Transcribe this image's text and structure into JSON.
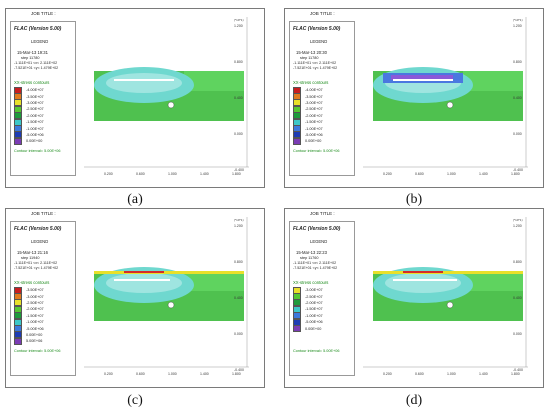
{
  "captions": {
    "a": "(a)",
    "b": "(b)",
    "c": "(c)",
    "d": "(d)"
  },
  "shared": {
    "job_title": "JOB TITLE :",
    "flac_version": "FLAC (Version 5.00)",
    "legend": "LEGEND",
    "contour_title": "XX-stress contours",
    "contour_interval": "Contour interval= 5.00E+06",
    "x_ticks": [
      "0.200",
      "0.600",
      "1.000",
      "1.400",
      "1.800"
    ],
    "y_ticks": [
      "1.200",
      "0.800",
      "0.400",
      "0.000",
      "-0.400"
    ],
    "axis_unit": "(*10^1)"
  },
  "panels": {
    "a": {
      "datetime": "15-Mar-13 19:31",
      "step": "step 11780",
      "range1": "-1.111E+01 <x< 2.111E+02",
      "range2": "-7.521E+01 <y< 1.479E+02",
      "contours": [
        "-4.00E+07",
        "-3.50E+07",
        "-3.00E+07",
        "-2.50E+07",
        "-2.00E+07",
        "-1.50E+07",
        "-1.00E+07",
        "-5.00E+06",
        "0.00E+00"
      ]
    },
    "b": {
      "datetime": "15-Mar-13 20:30",
      "step": "step 11780",
      "range1": "-1.111E+01 <x< 2.111E+02",
      "range2": "-7.521E+01 <y< 1.479E+02",
      "contours": [
        "-4.00E+07",
        "-3.50E+07",
        "-3.00E+07",
        "-2.50E+07",
        "-2.00E+07",
        "-1.50E+07",
        "-1.00E+07",
        "-5.00E+06",
        "0.00E+00"
      ]
    },
    "c": {
      "datetime": "15-Mar-13 21:16",
      "step": "step 11940",
      "range1": "-1.111E+01 <x< 2.111E+02",
      "range2": "-7.521E+01 <y< 1.479E+02",
      "contours": [
        "-3.50E+07",
        "-3.00E+07",
        "-2.50E+07",
        "-2.00E+07",
        "-1.50E+07",
        "-1.00E+07",
        "-5.00E+06",
        "0.00E+00",
        "5.00E+06"
      ]
    },
    "d": {
      "datetime": "15-Mar-13 22:23",
      "step": "step 11760",
      "range1": "-1.111E+01 <x< 2.111E+02",
      "range2": "-7.521E+01 <y< 1.479E+02",
      "contours": [
        "-3.00E+07",
        "-2.50E+07",
        "-2.00E+07",
        "-1.50E+07",
        "-1.00E+07",
        "-5.00E+06",
        "0.00E+00"
      ]
    }
  },
  "colors": {
    "contour_swatches": [
      "#c81e1e",
      "#e07a1e",
      "#e8e02a",
      "#55c832",
      "#1e9b3c",
      "#3cc8c8",
      "#3c78dc",
      "#1e3cb4",
      "#7a3cb4"
    ],
    "green": "#4fc14f",
    "light_green": "#5fd35f",
    "cyan": "#6fd8cf",
    "light_cyan": "#9fe5e0",
    "blue": "#4a78e0",
    "violet": "#8a5ad8",
    "white": "#ffffff",
    "red": "#d42a2a",
    "yellow": "#e8e02a"
  }
}
